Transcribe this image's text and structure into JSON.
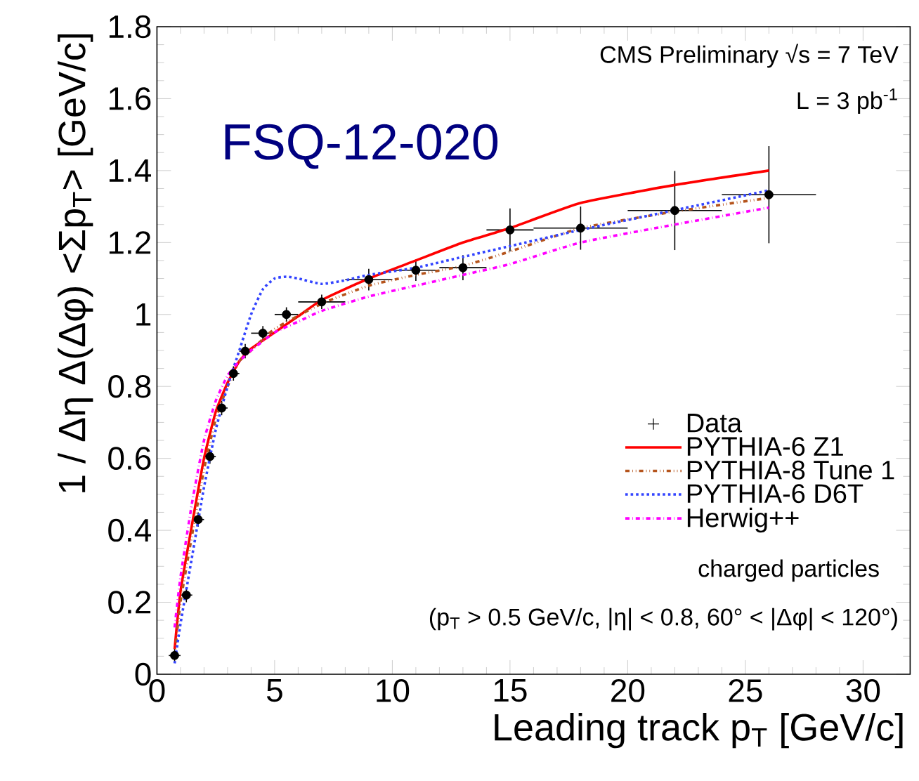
{
  "chart_data": {
    "type": "line",
    "xlabel": "Leading track p$_{T}$ [GeV/c]",
    "ylabel": "1 / Δη Δ(Δφ) <Σp$_{T}$> [GeV/c]",
    "xlim": [
      0,
      32
    ],
    "ylim": [
      0,
      1.8
    ],
    "xticks": [
      0,
      5,
      10,
      15,
      20,
      25,
      30
    ],
    "yticks": [
      0,
      0.2,
      0.4,
      0.6,
      0.8,
      1,
      1.2,
      1.4,
      1.6,
      1.8
    ],
    "legend": "bottom right",
    "grid": false,
    "annotations": [
      "CMS Preliminary √s = 7 TeV",
      "L = 3 pb$^{-1}$",
      "FSQ-12-020",
      "charged particles",
      "(p$_{T}$ > 0.5 GeV/c, |η| < 0.8, 60° < |Δφ| < 120°)"
    ],
    "series": [
      {
        "name": "Data",
        "type": "scatter",
        "color": "#000000",
        "x": [
          0.75,
          1.25,
          1.75,
          2.25,
          2.75,
          3.25,
          3.75,
          4.5,
          5.5,
          7,
          9,
          11,
          13,
          15,
          18,
          22,
          26
        ],
        "values": [
          0.052,
          0.22,
          0.43,
          0.605,
          0.74,
          0.836,
          0.898,
          0.948,
          1.0,
          1.035,
          1.097,
          1.123,
          1.13,
          1.235,
          1.24,
          1.289,
          1.333
        ],
        "errors": [
          0.02,
          0.02,
          0.02,
          0.02,
          0.02,
          0.02,
          0.02,
          0.02,
          0.02,
          0.02,
          0.03,
          0.03,
          0.035,
          0.06,
          0.06,
          0.11,
          0.135
        ],
        "xerrors": [
          0.25,
          0.25,
          0.25,
          0.25,
          0.25,
          0.25,
          0.25,
          0.5,
          0.5,
          1,
          1,
          1,
          1,
          1,
          2,
          2,
          2
        ]
      },
      {
        "name": "PYTHIA-6 Z1",
        "line_style": "solid",
        "color": "#ff0000",
        "x": [
          0.75,
          1,
          1.5,
          2,
          2.5,
          3,
          3.5,
          4,
          5,
          6,
          7,
          9,
          11,
          13,
          15,
          18,
          22,
          26
        ],
        "values": [
          0.07,
          0.23,
          0.42,
          0.6,
          0.73,
          0.81,
          0.87,
          0.905,
          0.95,
          0.995,
          1.04,
          1.1,
          1.15,
          1.2,
          1.24,
          1.31,
          1.36,
          1.4
        ]
      },
      {
        "name": "PYTHIA-8 Tune 1",
        "line_style": "dashdotdotted",
        "color": "#b5541c",
        "x": [
          0.75,
          1,
          1.5,
          2,
          2.5,
          3,
          3.5,
          4,
          5,
          7,
          9,
          11,
          13,
          15,
          18,
          22,
          26
        ],
        "values": [
          0.05,
          0.2,
          0.39,
          0.57,
          0.71,
          0.8,
          0.87,
          0.9,
          0.96,
          1.03,
          1.08,
          1.11,
          1.135,
          1.175,
          1.24,
          1.286,
          1.324
        ]
      },
      {
        "name": "PYTHIA-6 D6T",
        "line_style": "dotted",
        "color": "#3344ff",
        "x": [
          0.75,
          1,
          1.5,
          2,
          2.5,
          3,
          3.5,
          4,
          4.5,
          5,
          5.5,
          6,
          7,
          8,
          9,
          11,
          13,
          15,
          18,
          22,
          26
        ],
        "values": [
          0.03,
          0.14,
          0.33,
          0.52,
          0.68,
          0.8,
          0.9,
          1.0,
          1.07,
          1.1,
          1.105,
          1.1,
          1.085,
          1.095,
          1.11,
          1.13,
          1.16,
          1.19,
          1.235,
          1.29,
          1.345
        ]
      },
      {
        "name": "Herwig++",
        "line_style": "dashdotted",
        "color": "#ff00ff",
        "x": [
          0.75,
          1,
          1.5,
          2,
          2.5,
          3,
          3.5,
          4,
          5,
          6,
          7,
          9,
          11,
          13,
          15,
          18,
          22,
          26
        ],
        "values": [
          0.13,
          0.27,
          0.48,
          0.65,
          0.76,
          0.83,
          0.87,
          0.9,
          0.95,
          0.98,
          1.01,
          1.05,
          1.08,
          1.11,
          1.14,
          1.2,
          1.25,
          1.297
        ]
      }
    ]
  }
}
